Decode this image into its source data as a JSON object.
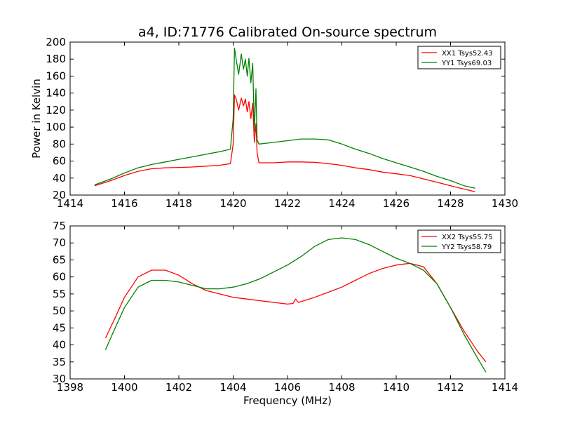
{
  "chart_data": [
    {
      "type": "line",
      "title": "a4, ID:71776 Calibrated On-source spectrum",
      "xlabel": "",
      "ylabel": "Power in Kelvin",
      "xlim": [
        1414,
        1430
      ],
      "ylim": [
        20,
        200
      ],
      "xticks": [
        1414,
        1416,
        1418,
        1420,
        1422,
        1424,
        1426,
        1428,
        1430
      ],
      "yticks": [
        20,
        40,
        60,
        80,
        100,
        120,
        140,
        160,
        180,
        200
      ],
      "legend_position": "upper-right",
      "grid": false,
      "series": [
        {
          "name": "XX1 Tsys52.43",
          "color": "#ff0000",
          "x": [
            1414.9,
            1415.5,
            1416.0,
            1416.5,
            1417.0,
            1417.5,
            1418.0,
            1418.5,
            1419.0,
            1419.5,
            1419.9,
            1420.0,
            1420.05,
            1420.12,
            1420.2,
            1420.3,
            1420.38,
            1420.45,
            1420.52,
            1420.58,
            1420.65,
            1420.72,
            1420.78,
            1420.84,
            1420.88,
            1420.95,
            1421.5,
            1422.0,
            1422.5,
            1423.0,
            1423.5,
            1424.0,
            1424.5,
            1425.0,
            1425.5,
            1426.0,
            1426.5,
            1427.0,
            1427.5,
            1428.0,
            1428.5,
            1428.9
          ],
          "y": [
            31,
            37,
            43,
            48,
            51,
            52,
            52.5,
            53,
            54,
            55,
            57,
            80,
            138,
            132,
            120,
            134,
            125,
            133,
            118,
            130,
            110,
            128,
            82,
            104,
            70,
            58,
            58,
            59,
            59,
            58.5,
            57,
            55,
            52,
            50,
            47,
            45,
            43,
            39,
            35,
            31,
            27,
            24
          ]
        },
        {
          "name": "YY1 Tsys69.03",
          "color": "#008000",
          "x": [
            1414.9,
            1415.5,
            1416.0,
            1416.5,
            1417.0,
            1417.5,
            1418.0,
            1418.5,
            1419.0,
            1419.5,
            1419.9,
            1420.0,
            1420.05,
            1420.12,
            1420.2,
            1420.3,
            1420.38,
            1420.45,
            1420.52,
            1420.58,
            1420.65,
            1420.72,
            1420.78,
            1420.84,
            1420.88,
            1420.95,
            1421.5,
            1422.0,
            1422.5,
            1423.0,
            1423.5,
            1424.0,
            1424.5,
            1425.0,
            1425.5,
            1426.0,
            1426.5,
            1427.0,
            1427.5,
            1428.0,
            1428.5,
            1428.9
          ],
          "y": [
            32,
            39,
            46,
            52,
            56,
            59,
            62,
            65,
            68,
            71,
            74,
            110,
            193,
            178,
            162,
            186,
            168,
            180,
            160,
            181,
            152,
            175,
            95,
            145,
            85,
            80,
            82,
            84,
            86,
            86,
            85,
            80,
            74,
            69,
            63,
            58,
            53,
            48,
            42,
            37,
            31,
            28
          ]
        }
      ]
    },
    {
      "type": "line",
      "title": "",
      "xlabel": "Frequency (MHz)",
      "ylabel": "",
      "xlim": [
        1398,
        1414
      ],
      "ylim": [
        30,
        75
      ],
      "xticks": [
        1398,
        1400,
        1402,
        1404,
        1406,
        1408,
        1410,
        1412,
        1414
      ],
      "yticks": [
        30,
        35,
        40,
        45,
        50,
        55,
        60,
        65,
        70,
        75
      ],
      "legend_position": "upper-right",
      "grid": false,
      "series": [
        {
          "name": "XX2 Tsys55.75",
          "color": "#ff0000",
          "x": [
            1399.3,
            1399.6,
            1400.0,
            1400.5,
            1401.0,
            1401.5,
            1402.0,
            1402.5,
            1403.0,
            1403.5,
            1404.0,
            1404.5,
            1405.0,
            1405.5,
            1406.0,
            1406.2,
            1406.3,
            1406.4,
            1406.6,
            1407.0,
            1407.5,
            1408.0,
            1408.5,
            1409.0,
            1409.5,
            1410.0,
            1410.5,
            1411.0,
            1411.5,
            1412.0,
            1412.5,
            1413.0,
            1413.3
          ],
          "y": [
            42,
            47,
            54,
            60,
            62,
            62,
            60.5,
            58,
            56,
            55,
            54,
            53.5,
            53,
            52.5,
            52,
            52.2,
            53.5,
            52.5,
            53,
            54,
            55.5,
            57,
            59,
            61,
            62.5,
            63.5,
            64,
            63,
            58,
            51,
            44,
            38,
            35
          ]
        },
        {
          "name": "YY2 Tsys58.79",
          "color": "#008000",
          "x": [
            1399.3,
            1399.6,
            1400.0,
            1400.5,
            1401.0,
            1401.5,
            1402.0,
            1402.5,
            1403.0,
            1403.5,
            1404.0,
            1404.5,
            1405.0,
            1405.5,
            1406.0,
            1406.5,
            1407.0,
            1407.5,
            1408.0,
            1408.5,
            1409.0,
            1409.5,
            1410.0,
            1410.5,
            1411.0,
            1411.5,
            1412.0,
            1412.5,
            1413.0,
            1413.3
          ],
          "y": [
            38.5,
            44,
            51,
            57,
            59,
            59,
            58.5,
            57.5,
            56.5,
            56.5,
            57,
            58,
            59.5,
            61.5,
            63.5,
            66,
            69,
            71,
            71.5,
            71,
            69.5,
            67.5,
            65.5,
            64,
            62,
            58,
            51,
            43,
            36,
            32
          ]
        }
      ]
    }
  ]
}
